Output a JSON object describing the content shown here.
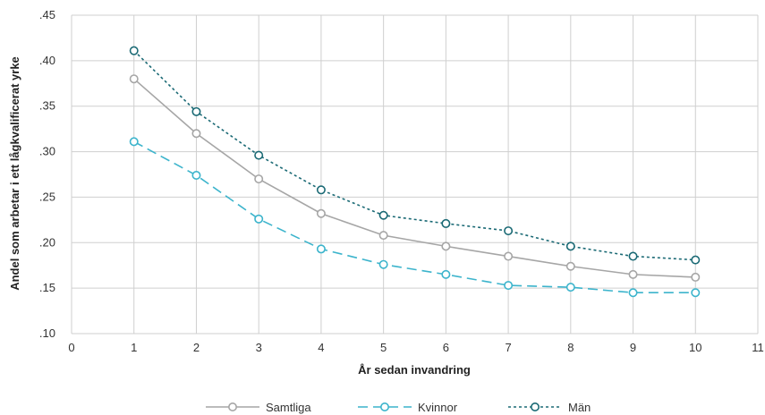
{
  "chart_data": {
    "type": "line",
    "title": "",
    "xlabel": "År sedan invandring",
    "ylabel": "Andel som arbetar i ett lågkvalificerat yrke",
    "xlim": [
      0,
      11
    ],
    "ylim": [
      0.1,
      0.45
    ],
    "x_ticks": [
      "0",
      "1",
      "2",
      "3",
      "4",
      "5",
      "6",
      "7",
      "8",
      "9",
      "10",
      "11"
    ],
    "y_ticks": [
      ".10",
      ".15",
      ".20",
      ".25",
      ".30",
      ".35",
      ".40",
      ".45"
    ],
    "grid": true,
    "legend_position": "bottom",
    "x": [
      1,
      2,
      3,
      4,
      5,
      6,
      7,
      8,
      9,
      10
    ],
    "series": [
      {
        "name": "Samtliga",
        "color": "#a6a6a6",
        "line_style": "solid",
        "values": [
          0.38,
          0.32,
          0.27,
          0.232,
          0.208,
          0.196,
          0.185,
          0.174,
          0.165,
          0.162
        ]
      },
      {
        "name": "Kvinnor",
        "color": "#3cb4cc",
        "line_style": "dashed",
        "values": [
          0.311,
          0.274,
          0.226,
          0.193,
          0.176,
          0.165,
          0.153,
          0.151,
          0.145,
          0.145
        ]
      },
      {
        "name": "Män",
        "color": "#1b6a75",
        "line_style": "dotted",
        "values": [
          0.411,
          0.344,
          0.296,
          0.258,
          0.23,
          0.221,
          0.213,
          0.196,
          0.185,
          0.181
        ]
      }
    ]
  }
}
